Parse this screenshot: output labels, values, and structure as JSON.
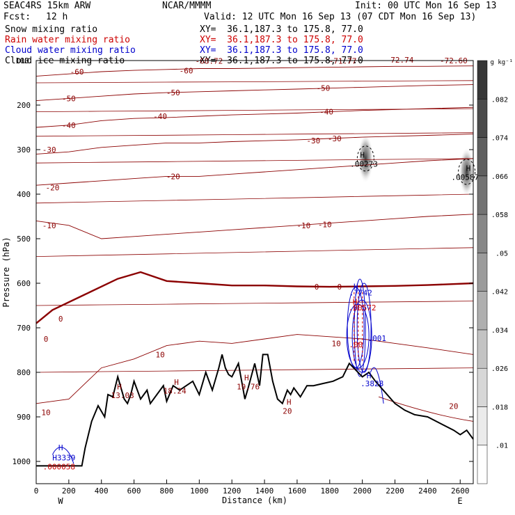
{
  "header": {
    "model": "SEAC4RS 15km ARW",
    "forecast_label": "Fcst:",
    "forecast_hours": "12 h",
    "org": "NCAR/MMMM",
    "init": "Init: 00 UTC Mon 16 Sep 13",
    "valid": "Valid: 12 UTC Mon 16 Sep 13 (07 CDT Mon 16 Sep 13)"
  },
  "fields": [
    {
      "name": "Snow mixing ratio",
      "xy": "XY=  36.1,187.3 to 175.8, 77.0",
      "color": "#000000"
    },
    {
      "name": "Rain water mixing ratio",
      "xy": "XY=  36.1,187.3 to 175.8, 77.0",
      "color": "#cc0000"
    },
    {
      "name": "Cloud water mixing ratio",
      "xy": "XY=  36.1,187.3 to 175.8, 77.0",
      "color": "#0000cc"
    },
    {
      "name": "Cloud ice mixing ratio",
      "xy": "XY=  36.1,187.3 to 175.8, 77.0",
      "color": "#000000"
    }
  ],
  "colorbar": {
    "unit": "g kg⁻¹",
    "ticks": [
      ".01",
      ".018",
      ".026",
      ".034",
      ".042",
      ".05",
      ".058",
      ".066",
      ".074",
      ".082"
    ]
  },
  "colors": {
    "temperature": "#8b0000",
    "terrain": "#000000",
    "cloud_water": "#0000cc",
    "rain": "#cc0000",
    "ice": "#000000"
  },
  "chart_data": {
    "type": "contour",
    "xlabel": "Distance (km)",
    "ylabel": "Pressure (hPa)",
    "xlim": [
      0,
      2680
    ],
    "ylim": [
      1050,
      100
    ],
    "x_ticks": [
      0,
      200,
      400,
      600,
      800,
      1000,
      1200,
      1400,
      1600,
      1800,
      2000,
      2200,
      2400,
      2600
    ],
    "y_ticks": [
      200,
      300,
      400,
      500,
      600,
      700,
      800,
      900,
      1000
    ],
    "y_top_label": "100",
    "endpoints": {
      "left": "W",
      "right": "E"
    },
    "terrain": {
      "x": [
        0,
        280,
        300,
        340,
        380,
        420,
        440,
        470,
        500,
        540,
        560,
        580,
        600,
        640,
        680,
        700,
        740,
        780,
        800,
        840,
        880,
        920,
        960,
        1000,
        1040,
        1080,
        1120,
        1140,
        1160,
        1180,
        1200,
        1240,
        1280,
        1300,
        1340,
        1370,
        1390,
        1420,
        1450,
        1480,
        1510,
        1540,
        1560,
        1580,
        1620,
        1660,
        1700,
        1760,
        1820,
        1880,
        1920,
        2000,
        2040,
        2080,
        2140,
        2200,
        2260,
        2320,
        2400,
        2480,
        2560,
        2600,
        2640,
        2680
      ],
      "p": [
        1010,
        1010,
        970,
        910,
        875,
        900,
        850,
        855,
        810,
        860,
        870,
        850,
        820,
        860,
        840,
        870,
        850,
        830,
        865,
        830,
        840,
        830,
        820,
        850,
        800,
        840,
        790,
        760,
        790,
        805,
        810,
        780,
        860,
        835,
        780,
        830,
        760,
        760,
        820,
        860,
        870,
        840,
        850,
        835,
        855,
        830,
        830,
        825,
        820,
        810,
        780,
        810,
        800,
        820,
        845,
        870,
        885,
        895,
        900,
        915,
        930,
        940,
        930,
        950
      ]
    },
    "isotherms": [
      {
        "t": 10,
        "labels": [
          "10",
          "10",
          "10"
        ]
      },
      {
        "t": 0,
        "labels": [
          "0",
          "0",
          "0",
          "0"
        ]
      },
      {
        "t": -10,
        "labels": [
          "-10",
          "-10",
          "-10"
        ]
      },
      {
        "t": -20,
        "labels": [
          "-20",
          "-20"
        ]
      },
      {
        "t": -30,
        "labels": [
          "-30",
          "-30",
          "-30"
        ]
      },
      {
        "t": -40,
        "labels": [
          "-40",
          "-40",
          "-40"
        ]
      },
      {
        "t": -50,
        "labels": [
          "-50",
          "-50",
          "-50"
        ]
      },
      {
        "t": -60,
        "labels": [
          "-60",
          "-60"
        ]
      }
    ],
    "iso_20_label": "20",
    "extrema": [
      {
        "text": "-68.72",
        "x": 1060,
        "p": 107,
        "color": "#8b0000"
      },
      {
        "text": "-71.77",
        "x": 1880,
        "p": 107,
        "color": "#8b0000"
      },
      {
        "text": "-72.74",
        "x": 2230,
        "p": 105,
        "color": "#8b0000"
      },
      {
        "text": "-72.60",
        "x": 2560,
        "p": 106,
        "color": "#8b0000"
      },
      {
        "text": "H",
        "x": 510,
        "p": 838,
        "color": "#8b0000"
      },
      {
        "text": "13.03",
        "x": 530,
        "p": 858,
        "color": "#8b0000"
      },
      {
        "text": "H",
        "x": 860,
        "p": 828,
        "color": "#8b0000"
      },
      {
        "text": "18.24",
        "x": 850,
        "p": 848,
        "color": "#8b0000"
      },
      {
        "text": "H",
        "x": 1290,
        "p": 818,
        "color": "#8b0000"
      },
      {
        "text": "19.76",
        "x": 1300,
        "p": 838,
        "color": "#8b0000"
      },
      {
        "text": "H",
        "x": 1550,
        "p": 873,
        "color": "#8b0000"
      },
      {
        "text": "20",
        "x": 1540,
        "p": 893,
        "color": "#8b0000"
      },
      {
        "text": "H",
        "x": 2000,
        "p": 318,
        "color": "#000000"
      },
      {
        "text": ".00273",
        "x": 2010,
        "p": 338,
        "color": "#000000"
      },
      {
        "text": "H",
        "x": 2650,
        "p": 348,
        "color": "#000000"
      },
      {
        "text": ".00587",
        "x": 2630,
        "p": 368,
        "color": "#000000"
      },
      {
        "text": "H",
        "x": 150,
        "p": 975,
        "color": "#0000cc"
      },
      {
        "text": "H3339",
        "x": 170,
        "p": 998,
        "color": "#0000cc"
      },
      {
        "text": ".000058",
        "x": 140,
        "p": 1018,
        "color": "#cc0000"
      },
      {
        "text": "H",
        "x": 1960,
        "p": 613,
        "color": "#0000cc"
      },
      {
        "text": ".7742",
        "x": 1990,
        "p": 627,
        "color": "#0000cc"
      },
      {
        "text": "H",
        "x": 1955,
        "p": 648,
        "color": "#cc0000"
      },
      {
        "text": ".00572",
        "x": 2000,
        "p": 661,
        "color": "#cc0000"
      },
      {
        "text": ".00",
        "x": 1960,
        "p": 744,
        "color": "#cc0000"
      },
      {
        "text": ".001",
        "x": 2090,
        "p": 730,
        "color": "#0000cc"
      },
      {
        "text": "H",
        "x": 2040,
        "p": 813,
        "color": "#0000cc"
      },
      {
        "text": ".3828",
        "x": 2060,
        "p": 831,
        "color": "#0000cc"
      }
    ],
    "snow": [
      {
        "center_x": 2020,
        "center_p": 320,
        "max": ".00273"
      },
      {
        "center_x": 2640,
        "center_p": 350,
        "max": ".00587"
      }
    ],
    "cloud_water_max": [
      ".3339",
      ".7742",
      ".3828",
      ".001"
    ],
    "rain_max": [
      ".000058",
      ".00572"
    ]
  }
}
